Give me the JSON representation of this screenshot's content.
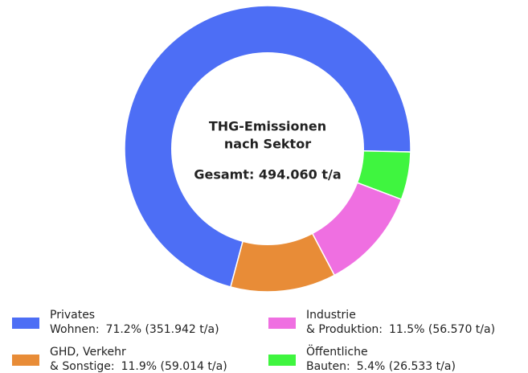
{
  "chart_data": {
    "type": "donut",
    "title": [
      "THG-Emissionen",
      "nach Sektor"
    ],
    "subtitle": "Gesamt: 494.060 t/a",
    "categories": [
      [
        "Privates",
        "Wohnen:"
      ],
      [
        "Öffentliche",
        "Bauten:"
      ],
      [
        "Industrie",
        "& Produktion:"
      ],
      [
        "GHD, Verkehr",
        "& Sonstige:"
      ]
    ],
    "values": [
      71.2,
      5.4,
      11.5,
      11.9
    ],
    "value_labels": [
      "71.2% (351.942 t/a)",
      "5.4% (26.533 t/a)",
      "11.5% (56.570 t/a)",
      "11.9% (59.014 t/a)"
    ],
    "colors": [
      "#4d6ef5",
      "#3ff53f",
      "#ef6fe1",
      "#e88c37"
    ],
    "legend": "bottom"
  }
}
